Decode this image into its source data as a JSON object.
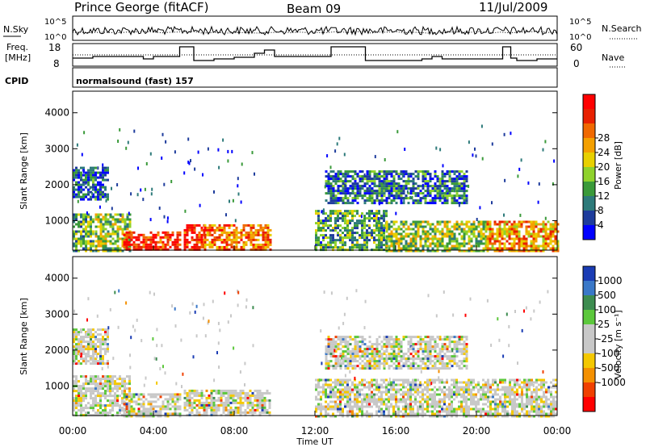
{
  "header": {
    "title": "Prince George (fitACF)",
    "beam": "Beam 09",
    "date": "11/Jul/2009"
  },
  "panels": {
    "nsky_label": "N.Sky",
    "nsearch_label": "N.Search",
    "freq_label_1": "Freq.",
    "freq_label_2": "[MHz]",
    "nave_label": "Nave",
    "cpid_label": "CPID",
    "cpid_value": "normalsound (fast) 157",
    "noise_left_ticks": [
      "10^5",
      "10^0"
    ],
    "noise_right_ticks": [
      "10^5",
      "10^0"
    ],
    "freq_left_ticks": [
      "18",
      "8"
    ],
    "freq_right_ticks": [
      "60",
      "0"
    ]
  },
  "chart_data": [
    {
      "type": "heatmap",
      "name": "power",
      "ylabel": "Slant Range [km]",
      "xlabel": "Time UT",
      "yticks": [
        "1000",
        "2000",
        "3000",
        "4000"
      ],
      "ylim": [
        180,
        4600
      ],
      "xlim": [
        0,
        24
      ],
      "xticks": [
        "00:00",
        "04:00",
        "08:00",
        "12:00",
        "16:00",
        "20:00",
        "00:00"
      ],
      "colorbar": {
        "label": "Power [dB]",
        "ticks": [
          "4",
          "8",
          "12",
          "16",
          "20",
          "24",
          "28"
        ],
        "colors": [
          "#0000ff",
          "#1e3c9c",
          "#2d7a7a",
          "#3a9a3a",
          "#8fd22c",
          "#e8d000",
          "#f4a000",
          "#f06800",
          "#e82000",
          "#ff0000"
        ]
      },
      "echo_regions": [
        {
          "t0": 0.0,
          "t1": 1.0,
          "r0": 180,
          "r1": 1200,
          "level": 0.35
        },
        {
          "t0": 1.1,
          "t1": 2.8,
          "r0": 180,
          "r1": 1200,
          "level": 0.45
        },
        {
          "t0": 2.5,
          "t1": 5.3,
          "r0": 180,
          "r1": 700,
          "level": 0.95
        },
        {
          "t0": 5.5,
          "t1": 6.5,
          "r0": 180,
          "r1": 900,
          "level": 0.9
        },
        {
          "t0": 6.5,
          "t1": 9.8,
          "r0": 180,
          "r1": 900,
          "level": 0.75
        },
        {
          "t0": 12.0,
          "t1": 15.5,
          "r0": 180,
          "r1": 1300,
          "level": 0.3
        },
        {
          "t0": 15.5,
          "t1": 20.5,
          "r0": 180,
          "r1": 1000,
          "level": 0.45
        },
        {
          "t0": 20.5,
          "t1": 24.0,
          "r0": 180,
          "r1": 1000,
          "level": 0.7
        },
        {
          "t0": 0.0,
          "t1": 1.7,
          "r0": 1600,
          "r1": 2500,
          "level": 0.15
        },
        {
          "t0": 12.5,
          "t1": 19.5,
          "r0": 1500,
          "r1": 2400,
          "level": 0.2
        }
      ]
    },
    {
      "type": "heatmap",
      "name": "velocity",
      "ylabel": "Slant Range [km]",
      "xlabel": "Time UT",
      "yticks": [
        "1000",
        "2000",
        "3000",
        "4000"
      ],
      "ylim": [
        180,
        4600
      ],
      "xlim": [
        0,
        24
      ],
      "xticks": [
        "00:00",
        "04:00",
        "08:00",
        "12:00",
        "16:00",
        "20:00",
        "00:00"
      ],
      "colorbar": {
        "label": "Velocity [m s⁻¹]",
        "ticks": [
          "1000",
          "500",
          "100",
          "25",
          "-25",
          "-100",
          "-500",
          "-1000"
        ],
        "colors": [
          "#1a3cb4",
          "#3a78c8",
          "#3d8c50",
          "#5cc83c",
          "#c8c8c8",
          "#c8c8c8",
          "#f4c800",
          "#f49000",
          "#f04000",
          "#ff0000"
        ]
      },
      "echo_regions": [
        {
          "t0": 0.0,
          "t1": 2.8,
          "r0": 180,
          "r1": 1300,
          "level": 0.5
        },
        {
          "t0": 2.5,
          "t1": 5.3,
          "r0": 180,
          "r1": 800,
          "level": 0.5
        },
        {
          "t0": 5.5,
          "t1": 9.8,
          "r0": 180,
          "r1": 900,
          "level": 0.6
        },
        {
          "t0": 12.0,
          "t1": 24.0,
          "r0": 180,
          "r1": 1200,
          "level": 0.5
        },
        {
          "t0": 0.0,
          "t1": 1.7,
          "r0": 1600,
          "r1": 2600,
          "level": 0.5
        },
        {
          "t0": 12.5,
          "t1": 19.5,
          "r0": 1500,
          "r1": 2400,
          "level": 0.5
        }
      ]
    }
  ]
}
